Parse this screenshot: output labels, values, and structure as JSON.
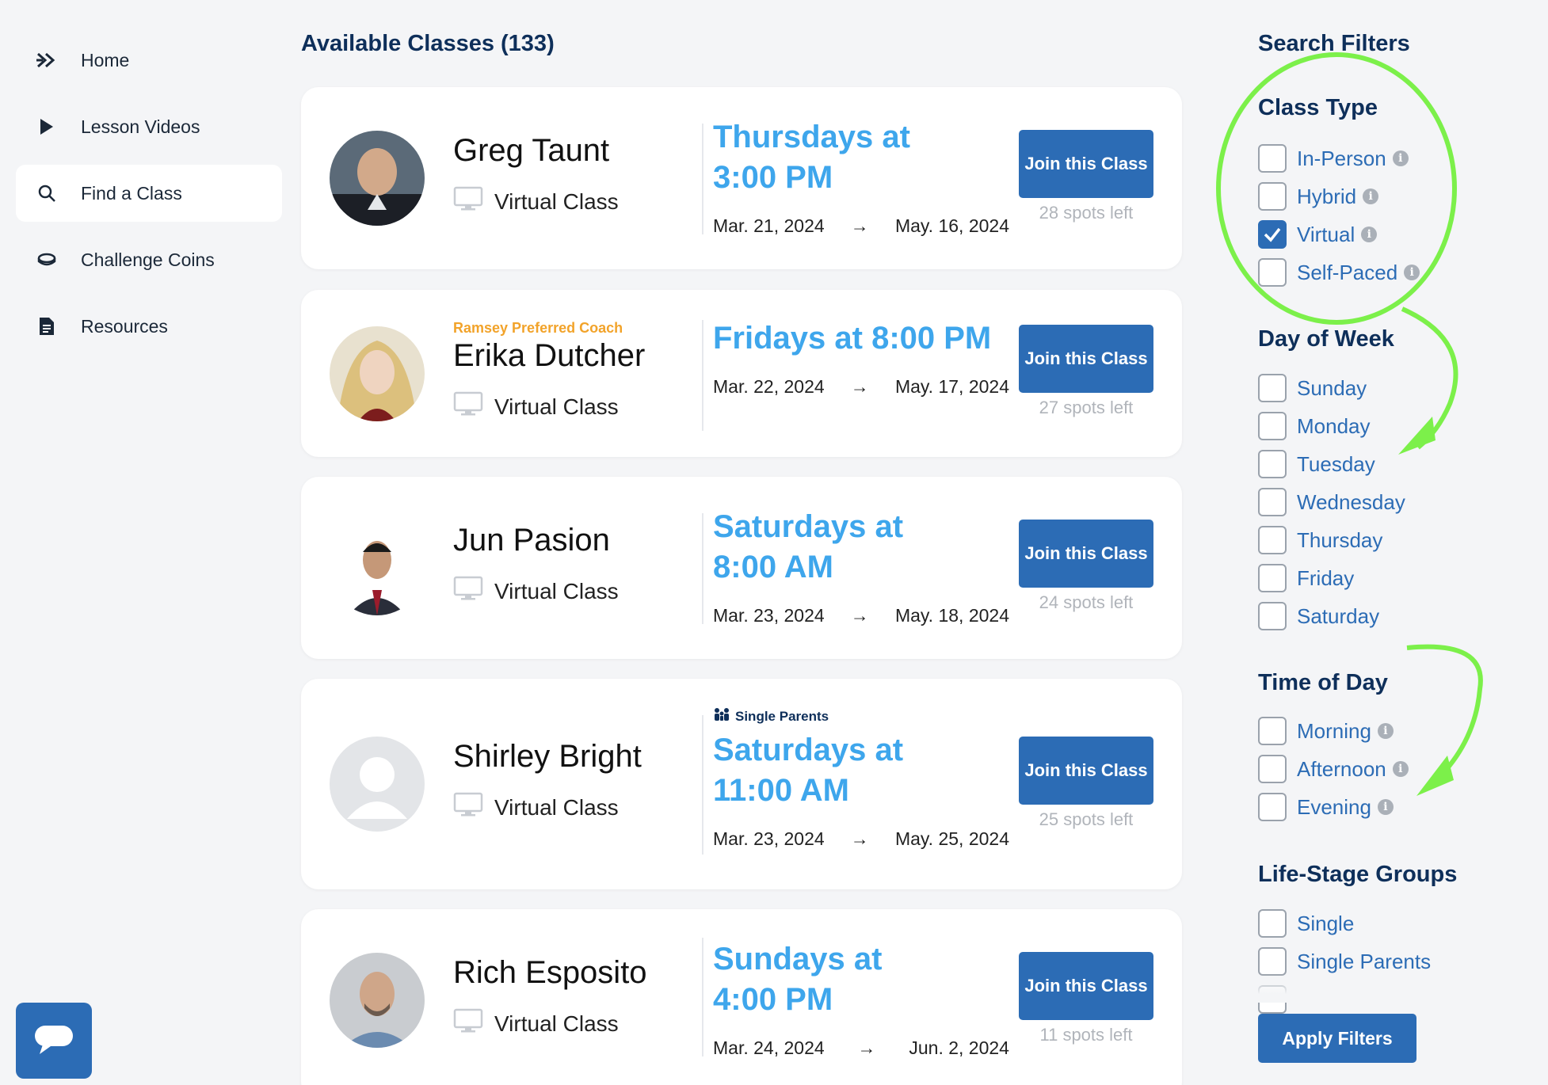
{
  "sidebar": {
    "items": [
      {
        "label": "Home",
        "icon": "double-chevron-icon"
      },
      {
        "label": "Lesson Videos",
        "icon": "play-icon"
      },
      {
        "label": "Find a Class",
        "icon": "search-icon",
        "active": true
      },
      {
        "label": "Challenge Coins",
        "icon": "coin-icon"
      },
      {
        "label": "Resources",
        "icon": "document-icon"
      }
    ]
  },
  "main": {
    "title": "Available Classes (133)",
    "classes": [
      {
        "tag": "",
        "group": "",
        "name": "Greg Taunt",
        "type": "Virtual Class",
        "schedule_line1": "Thursdays at",
        "schedule_line2": "3:00 PM",
        "start": "Mar. 21, 2024",
        "end": "May. 16, 2024",
        "button": "Join this Class",
        "spots": "28 spots left"
      },
      {
        "tag": "Ramsey Preferred Coach",
        "group": "",
        "name": "Erika Dutcher",
        "type": "Virtual Class",
        "schedule_line1": "Fridays at 8:00 PM",
        "schedule_line2": "",
        "start": "Mar. 22, 2024",
        "end": "May. 17, 2024",
        "button": "Join this Class",
        "spots": "27 spots left"
      },
      {
        "tag": "",
        "group": "",
        "name": "Jun Pasion",
        "type": "Virtual Class",
        "schedule_line1": "Saturdays at",
        "schedule_line2": "8:00 AM",
        "start": "Mar. 23, 2024",
        "end": "May. 18, 2024",
        "button": "Join this Class",
        "spots": "24 spots left"
      },
      {
        "tag": "",
        "group": "Single Parents",
        "name": "Shirley Bright",
        "type": "Virtual Class",
        "schedule_line1": "Saturdays at",
        "schedule_line2": "11:00 AM",
        "start": "Mar. 23, 2024",
        "end": "May. 25, 2024",
        "button": "Join this Class",
        "spots": "25 spots left"
      },
      {
        "tag": "",
        "group": "",
        "name": "Rich Esposito",
        "type": "Virtual Class",
        "schedule_line1": "Sundays at",
        "schedule_line2": "4:00 PM",
        "start": "Mar. 24, 2024",
        "end": "Jun. 2, 2024",
        "button": "Join this Class",
        "spots": "11 spots left"
      }
    ],
    "arrow": "→"
  },
  "filters": {
    "title": "Search Filters",
    "class_type": {
      "heading": "Class Type",
      "options": [
        {
          "label": "In-Person",
          "checked": false,
          "info": true
        },
        {
          "label": "Hybrid",
          "checked": false,
          "info": true
        },
        {
          "label": "Virtual",
          "checked": true,
          "info": true
        },
        {
          "label": "Self-Paced",
          "checked": false,
          "info": true
        }
      ]
    },
    "day_of_week": {
      "heading": "Day of Week",
      "options": [
        {
          "label": "Sunday"
        },
        {
          "label": "Monday"
        },
        {
          "label": "Tuesday"
        },
        {
          "label": "Wednesday"
        },
        {
          "label": "Thursday"
        },
        {
          "label": "Friday"
        },
        {
          "label": "Saturday"
        }
      ]
    },
    "time_of_day": {
      "heading": "Time of Day",
      "options": [
        {
          "label": "Morning",
          "info": true
        },
        {
          "label": "Afternoon",
          "info": true
        },
        {
          "label": "Evening",
          "info": true
        }
      ]
    },
    "life_stage": {
      "heading": "Life-Stage Groups",
      "options": [
        {
          "label": "Single"
        },
        {
          "label": "Single Parents"
        }
      ]
    },
    "apply": "Apply Filters",
    "info_glyph": "i"
  },
  "colors": {
    "accent": "#2c6cb5",
    "schedule": "#3ea6ec",
    "tag": "#f2a32a",
    "annotation": "#7cf04a"
  }
}
